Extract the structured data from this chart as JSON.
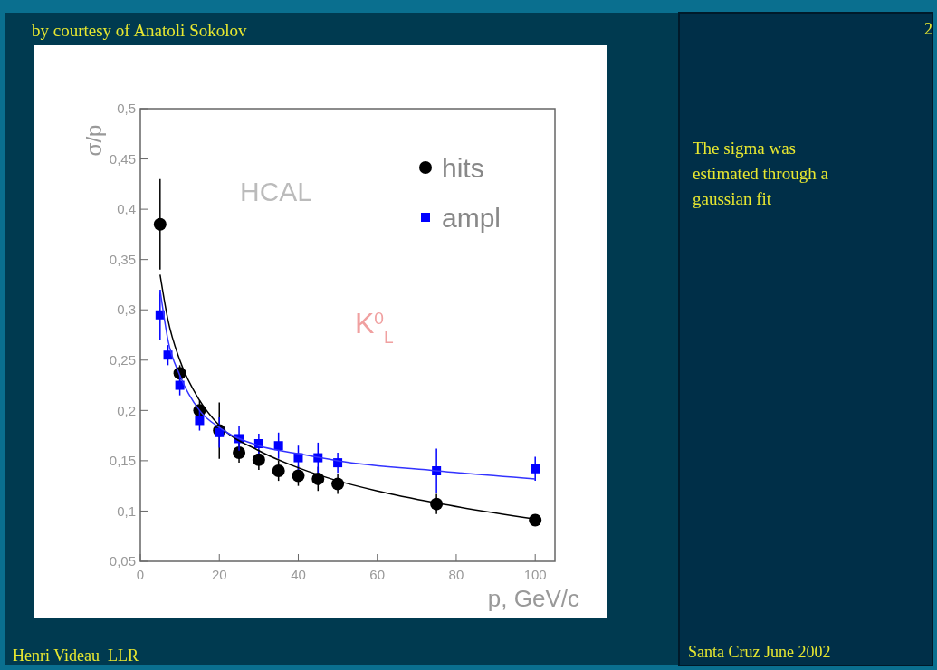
{
  "chart_data": {
    "type": "scatter",
    "title": "by courtesy of Anatoli Sokolov",
    "xlabel": "p, GeV/c",
    "ylabel": "σ/p",
    "xlim": [
      0,
      105
    ],
    "xticks": [
      0,
      20,
      40,
      60,
      80,
      100
    ],
    "ylim": [
      0.05,
      0.5
    ],
    "yticks": [
      {
        "value": 0.05,
        "label": "0,05"
      },
      {
        "value": 0.1,
        "label": "0,1"
      },
      {
        "value": 0.15,
        "label": "0,15"
      },
      {
        "value": 0.2,
        "label": "0,2"
      },
      {
        "value": 0.25,
        "label": "0,25"
      },
      {
        "value": 0.3,
        "label": "0,3"
      },
      {
        "value": 0.35,
        "label": "0,35"
      },
      {
        "value": 0.4,
        "label": "0,4"
      },
      {
        "value": 0.45,
        "label": "0,45"
      },
      {
        "value": 0.5,
        "label": "0,5"
      }
    ],
    "grid": false,
    "legend": "top right",
    "series": [
      {
        "name": "hits",
        "color": "#000000",
        "marker": "circle",
        "x": [
          5,
          10,
          15,
          20,
          25,
          30,
          35,
          40,
          45,
          50,
          75,
          100
        ],
        "values": [
          0.385,
          0.237,
          0.2,
          0.18,
          0.158,
          0.151,
          0.14,
          0.135,
          0.132,
          0.127,
          0.107,
          0.091
        ],
        "errors": [
          0.045,
          0.008,
          0.01,
          0.028,
          0.01,
          0.01,
          0.01,
          0.01,
          0.012,
          0.01,
          0.01,
          0.005
        ]
      },
      {
        "name": "ampl",
        "color": "#0000ff",
        "marker": "square",
        "x": [
          5,
          7,
          10,
          15,
          20,
          25,
          30,
          35,
          40,
          45,
          50,
          75,
          100
        ],
        "values": [
          0.295,
          0.255,
          0.225,
          0.19,
          0.178,
          0.172,
          0.167,
          0.165,
          0.153,
          0.153,
          0.148,
          0.14,
          0.142
        ],
        "errors": [
          0.025,
          0.01,
          0.01,
          0.01,
          0.015,
          0.012,
          0.01,
          0.013,
          0.012,
          0.015,
          0.01,
          0.022,
          0.012
        ]
      },
      {
        "type": "line",
        "color": "#000000",
        "x": [
          5,
          7,
          10,
          15,
          20,
          30,
          40,
          50,
          60,
          75,
          100
        ],
        "values": [
          0.335,
          0.29,
          0.25,
          0.21,
          0.185,
          0.16,
          0.143,
          0.13,
          0.12,
          0.108,
          0.092
        ]
      },
      {
        "type": "line",
        "color": "#3333ff",
        "x": [
          5,
          7,
          10,
          15,
          20,
          30,
          40,
          50,
          75,
          100
        ],
        "values": [
          0.32,
          0.27,
          0.235,
          0.2,
          0.183,
          0.165,
          0.157,
          0.15,
          0.14,
          0.132
        ]
      }
    ],
    "annotations": [
      "HCAL",
      "K$^{0}$$_{L}$",
      "The sigma was estimated through a gaussian fit",
      "Henri Videau  LLR",
      "Santa Cruz June 2002",
      "2"
    ]
  }
}
